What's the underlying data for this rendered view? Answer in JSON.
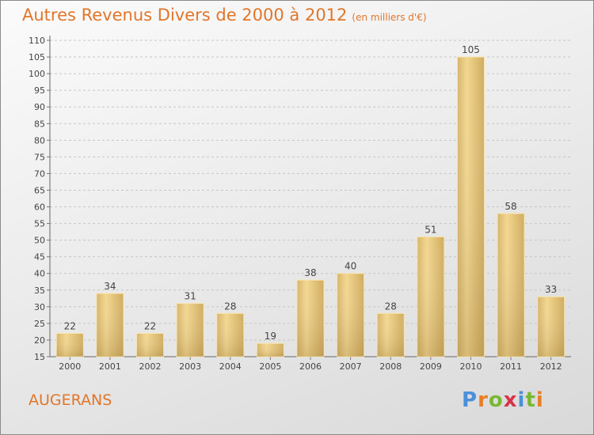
{
  "title": "Autres Revenus Divers de 2000 à 2012",
  "subtitle": "(en milliers d'€)",
  "commune": "AUGERANS",
  "logo": {
    "p": "P",
    "r": "r",
    "o": "o",
    "x": "x",
    "i1": "i",
    "t": "t",
    "i2": "i"
  },
  "colors": {
    "title": "#e1762a",
    "bar": "#e9c97a",
    "bar_light": "#f6dc96",
    "bar_dark": "#c9a55a"
  },
  "chart_data": {
    "type": "bar",
    "title": "Autres Revenus Divers de 2000 à 2012",
    "subtitle": "(en milliers d'€)",
    "categories": [
      "2000",
      "2001",
      "2002",
      "2003",
      "2004",
      "2005",
      "2006",
      "2007",
      "2008",
      "2009",
      "2010",
      "2011",
      "2012"
    ],
    "values": [
      22,
      34,
      22,
      31,
      28,
      19,
      38,
      40,
      28,
      51,
      105,
      58,
      33
    ],
    "yticks": [
      15,
      20,
      25,
      30,
      35,
      40,
      45,
      50,
      55,
      60,
      65,
      70,
      75,
      80,
      85,
      90,
      95,
      100,
      105,
      110
    ],
    "ylim": [
      15,
      110
    ],
    "grid": true,
    "xlabel": "",
    "ylabel": ""
  }
}
